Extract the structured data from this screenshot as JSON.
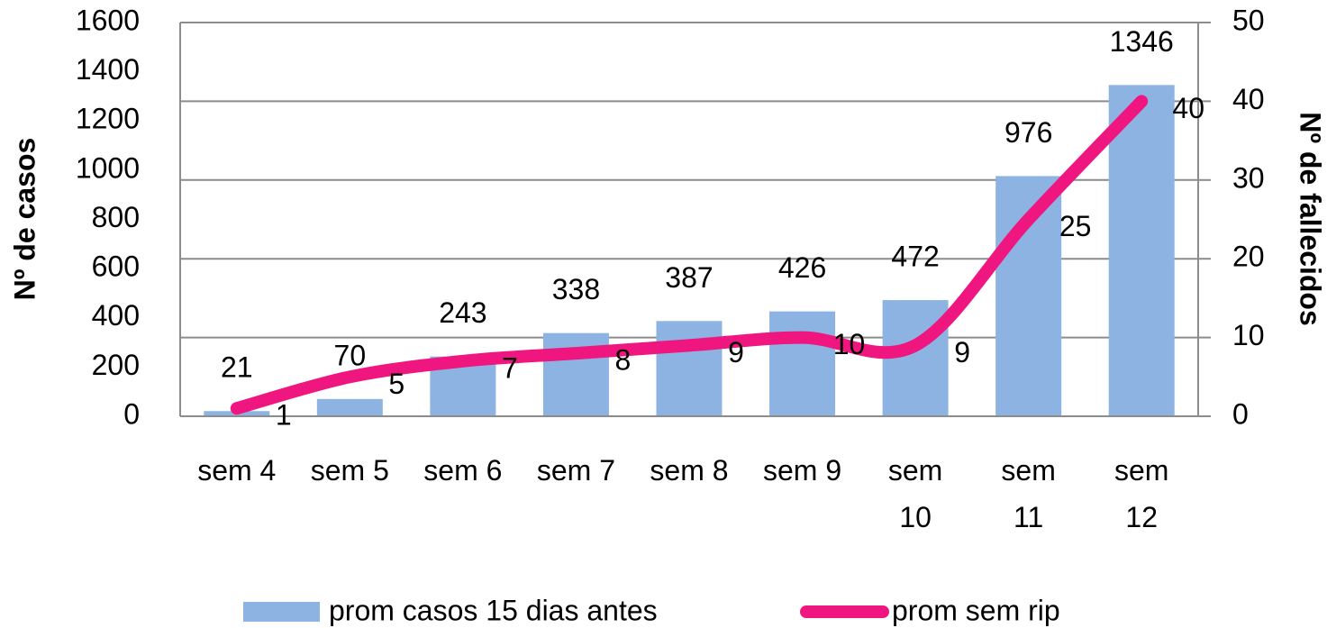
{
  "chart_data": {
    "type": "bar-line",
    "categories": [
      "sem 4",
      "sem 5",
      "sem 6",
      "sem 7",
      "sem 8",
      "sem 9",
      "sem 10",
      "sem 11",
      "sem 12"
    ],
    "series": [
      {
        "name": "prom casos 15 dias antes",
        "type": "bar",
        "color": "#8db3e2",
        "values": [
          21,
          70,
          243,
          338,
          387,
          426,
          472,
          976,
          1346
        ]
      },
      {
        "name": "prom sem rip",
        "type": "line",
        "axis": "y2",
        "color": "#f0167f",
        "values": [
          1,
          5,
          7,
          8,
          9,
          10,
          9,
          25,
          40
        ]
      }
    ],
    "ylabel": "Nº de casos",
    "y2label": "Nº de fallecidos",
    "ylim": [
      0,
      1600
    ],
    "yticks": [
      0,
      200,
      400,
      600,
      800,
      1000,
      1200,
      1400,
      1600
    ],
    "y2lim": [
      0,
      50
    ],
    "y2ticks": [
      0,
      10,
      20,
      30,
      40,
      50
    ],
    "grid": true
  }
}
